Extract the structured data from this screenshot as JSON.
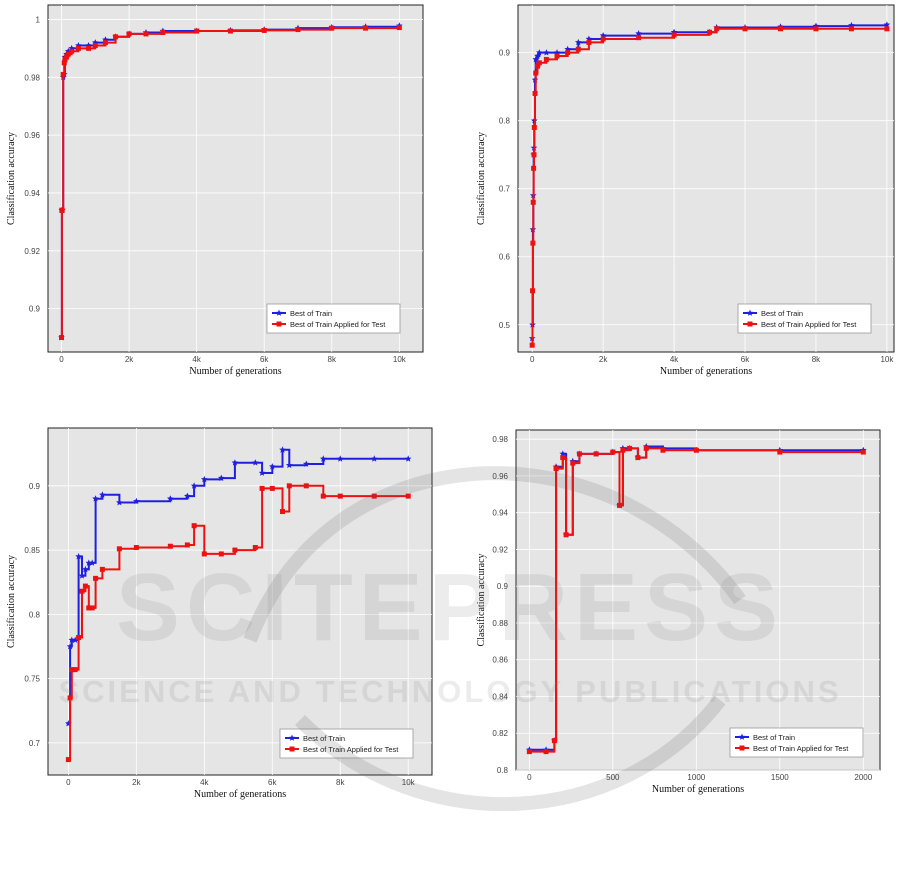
{
  "chart_data": [
    {
      "type": "line",
      "xlabel": "Number of generations",
      "ylabel": "Classification accuracy",
      "xlim": [
        -400,
        10700
      ],
      "ylim": [
        0.885,
        1.005
      ],
      "xticks": [
        0,
        2000,
        4000,
        6000,
        8000,
        10000
      ],
      "xtick_labels": [
        "0",
        "2k",
        "4k",
        "6k",
        "8k",
        "10k"
      ],
      "yticks": [
        0.9,
        0.92,
        0.94,
        0.96,
        0.98,
        1
      ],
      "ytick_labels": [
        "0.9",
        "0.92",
        "0.94",
        "0.96",
        "0.98",
        "1"
      ],
      "grid": true,
      "legend_position": "bottom-right",
      "series": [
        {
          "name": "Best of Train",
          "color": "#1f1fe0",
          "marker": "star",
          "x": [
            0,
            10,
            20,
            50,
            80,
            100,
            150,
            200,
            300,
            500,
            800,
            1000,
            1300,
            1600,
            2000,
            2500,
            3000,
            4000,
            5000,
            6000,
            7000,
            8000,
            9000,
            10000
          ],
          "y": [
            0.89,
            0.934,
            0.934,
            0.98,
            0.981,
            0.987,
            0.988,
            0.989,
            0.99,
            0.991,
            0.991,
            0.992,
            0.993,
            0.994,
            0.995,
            0.9955,
            0.996,
            0.996,
            0.9962,
            0.9965,
            0.997,
            0.9973,
            0.9975,
            0.9978
          ]
        },
        {
          "name": "Best of Train Applied for Test",
          "color": "#ee1111",
          "marker": "square",
          "x": [
            0,
            10,
            20,
            50,
            80,
            100,
            150,
            200,
            300,
            500,
            800,
            1000,
            1300,
            1600,
            2000,
            2500,
            3000,
            4000,
            5000,
            6000,
            7000,
            8000,
            9000,
            10000
          ],
          "y": [
            0.89,
            0.934,
            0.934,
            0.981,
            0.985,
            0.986,
            0.987,
            0.988,
            0.989,
            0.99,
            0.99,
            0.991,
            0.992,
            0.994,
            0.995,
            0.995,
            0.9955,
            0.996,
            0.996,
            0.9962,
            0.9965,
            0.997,
            0.997,
            0.9972
          ]
        }
      ]
    },
    {
      "type": "line",
      "xlabel": "Number of generations",
      "ylabel": "Classification accuracy",
      "xlim": [
        -400,
        10200
      ],
      "ylim": [
        0.46,
        0.97
      ],
      "xticks": [
        0,
        2000,
        4000,
        6000,
        8000,
        10000
      ],
      "xtick_labels": [
        "0",
        "2k",
        "4k",
        "6k",
        "8k",
        "10k"
      ],
      "yticks": [
        0.5,
        0.6,
        0.7,
        0.8,
        0.9
      ],
      "ytick_labels": [
        "0.5",
        "0.6",
        "0.7",
        "0.8",
        "0.9"
      ],
      "grid": true,
      "legend_position": "bottom-right",
      "series": [
        {
          "name": "Best of Train",
          "color": "#1f1fe0",
          "marker": "star",
          "x": [
            0,
            10,
            20,
            30,
            40,
            50,
            60,
            80,
            100,
            150,
            200,
            400,
            700,
            1000,
            1300,
            1600,
            2000,
            3000,
            4000,
            5000,
            5200,
            6000,
            7000,
            8000,
            9000,
            10000
          ],
          "y": [
            0.48,
            0.5,
            0.64,
            0.69,
            0.75,
            0.76,
            0.8,
            0.86,
            0.89,
            0.895,
            0.9,
            0.9,
            0.9,
            0.905,
            0.915,
            0.92,
            0.925,
            0.928,
            0.93,
            0.93,
            0.937,
            0.937,
            0.938,
            0.939,
            0.94,
            0.941
          ]
        },
        {
          "name": "Best of Train Applied for Test",
          "color": "#ee1111",
          "marker": "square",
          "x": [
            0,
            10,
            20,
            30,
            40,
            50,
            60,
            80,
            100,
            150,
            200,
            400,
            700,
            1000,
            1300,
            1600,
            2000,
            3000,
            4000,
            5000,
            5200,
            6000,
            7000,
            8000,
            9000,
            10000
          ],
          "y": [
            0.47,
            0.55,
            0.62,
            0.68,
            0.73,
            0.75,
            0.79,
            0.84,
            0.87,
            0.88,
            0.885,
            0.89,
            0.895,
            0.9,
            0.905,
            0.915,
            0.92,
            0.922,
            0.926,
            0.93,
            0.935,
            0.935,
            0.935,
            0.935,
            0.935,
            0.935
          ]
        }
      ]
    },
    {
      "type": "line",
      "xlabel": "Number of generations",
      "ylabel": "Classification accuracy",
      "xlim": [
        -600,
        10700
      ],
      "ylim": [
        0.675,
        0.945
      ],
      "xticks": [
        0,
        2000,
        4000,
        6000,
        8000,
        10000
      ],
      "xtick_labels": [
        "0",
        "2k",
        "4k",
        "6k",
        "8k",
        "10k"
      ],
      "yticks": [
        0.7,
        0.75,
        0.8,
        0.85,
        0.9
      ],
      "ytick_labels": [
        "0.7",
        "0.75",
        "0.8",
        "0.85",
        "0.9"
      ],
      "grid": true,
      "legend_position": "bottom-right",
      "series": [
        {
          "name": "Best of Train",
          "color": "#1f1fe0",
          "marker": "star",
          "x": [
            0,
            50,
            100,
            200,
            300,
            400,
            500,
            600,
            700,
            800,
            1000,
            1500,
            2000,
            3000,
            3500,
            3700,
            4000,
            4500,
            4900,
            5500,
            5700,
            6000,
            6300,
            6500,
            7000,
            7500,
            8000,
            9000,
            10000
          ],
          "y": [
            0.715,
            0.775,
            0.78,
            0.78,
            0.845,
            0.83,
            0.835,
            0.84,
            0.84,
            0.89,
            0.893,
            0.887,
            0.888,
            0.89,
            0.892,
            0.9,
            0.905,
            0.906,
            0.918,
            0.918,
            0.91,
            0.915,
            0.928,
            0.916,
            0.917,
            0.921,
            0.921,
            0.921,
            0.921
          ]
        },
        {
          "name": "Best of Train Applied for Test",
          "color": "#ee1111",
          "marker": "square",
          "x": [
            0,
            50,
            100,
            200,
            300,
            400,
            500,
            600,
            700,
            800,
            1000,
            1500,
            2000,
            3000,
            3500,
            3700,
            4000,
            4500,
            4900,
            5500,
            5700,
            6000,
            6300,
            6500,
            7000,
            7500,
            8000,
            9000,
            10000
          ],
          "y": [
            0.687,
            0.735,
            0.757,
            0.757,
            0.782,
            0.818,
            0.822,
            0.805,
            0.805,
            0.828,
            0.835,
            0.851,
            0.852,
            0.853,
            0.854,
            0.869,
            0.847,
            0.847,
            0.85,
            0.852,
            0.898,
            0.898,
            0.88,
            0.9,
            0.9,
            0.892,
            0.892,
            0.892,
            0.892
          ]
        }
      ]
    },
    {
      "type": "line",
      "xlabel": "Number of generations",
      "ylabel": "Classification accuracy",
      "xlim": [
        -80,
        2100
      ],
      "ylim": [
        0.8,
        0.985
      ],
      "xticks": [
        0,
        500,
        1000,
        1500,
        2000
      ],
      "xtick_labels": [
        "0",
        "500",
        "1000",
        "1500",
        "2000"
      ],
      "yticks": [
        0.8,
        0.82,
        0.84,
        0.86,
        0.88,
        0.9,
        0.92,
        0.94,
        0.96,
        0.98
      ],
      "ytick_labels": [
        "0.8",
        "0.82",
        "0.84",
        "0.86",
        "0.88",
        "0.9",
        "0.92",
        "0.94",
        "0.96",
        "0.98"
      ],
      "grid": true,
      "legend_position": "bottom-right",
      "series": [
        {
          "name": "Best of Train",
          "color": "#1f1fe0",
          "marker": "star",
          "x": [
            0,
            100,
            150,
            160,
            200,
            220,
            260,
            300,
            400,
            500,
            540,
            560,
            600,
            650,
            700,
            800,
            1000,
            1500,
            2000
          ],
          "y": [
            0.811,
            0.811,
            0.816,
            0.965,
            0.972,
            0.928,
            0.968,
            0.972,
            0.972,
            0.973,
            0.944,
            0.975,
            0.975,
            0.97,
            0.976,
            0.975,
            0.974,
            0.974,
            0.974
          ]
        },
        {
          "name": "Best of Train Applied for Test",
          "color": "#ee1111",
          "marker": "square",
          "x": [
            0,
            100,
            150,
            160,
            200,
            220,
            260,
            300,
            400,
            500,
            540,
            560,
            600,
            650,
            700,
            800,
            1000,
            1500,
            2000
          ],
          "y": [
            0.81,
            0.81,
            0.816,
            0.964,
            0.97,
            0.928,
            0.967,
            0.972,
            0.972,
            0.973,
            0.944,
            0.974,
            0.975,
            0.97,
            0.975,
            0.974,
            0.974,
            0.973,
            0.973
          ]
        }
      ]
    }
  ],
  "watermark": {
    "line1": "SCITEPRESS",
    "line2": "SCIENCE AND TECHNOLOGY PUBLICATIONS"
  }
}
